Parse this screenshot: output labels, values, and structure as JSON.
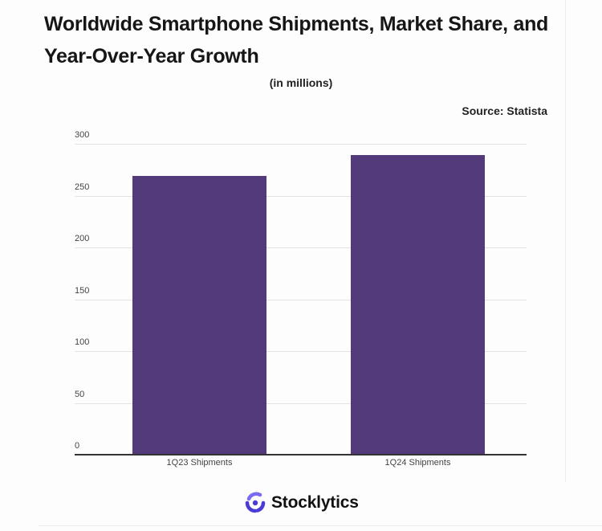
{
  "header": {
    "title": "Worldwide Smartphone Shipments, Market Share, and Year-Over-Year Growth",
    "subtitle": "(in millions)",
    "source": "Source: Statista"
  },
  "footer": {
    "brand": "Stocklytics"
  },
  "colors": {
    "bar": "#533a7b",
    "logo_primary": "#4b3bd6",
    "logo_secondary": "#7a6cf0"
  },
  "chart_data": {
    "type": "bar",
    "title": "Worldwide Smartphone Shipments, Market Share, and Year-Over-Year Growth",
    "subtitle": "(in millions)",
    "annotation": "Source: Statista",
    "categories": [
      "1Q23 Shipments",
      "1Q24 Shipments"
    ],
    "values": [
      269,
      289
    ],
    "xlabel": "",
    "ylabel": "",
    "ylim": [
      0,
      300
    ],
    "yticks": [
      0,
      50,
      100,
      150,
      200,
      250,
      300
    ],
    "grid": true,
    "legend": "none"
  }
}
